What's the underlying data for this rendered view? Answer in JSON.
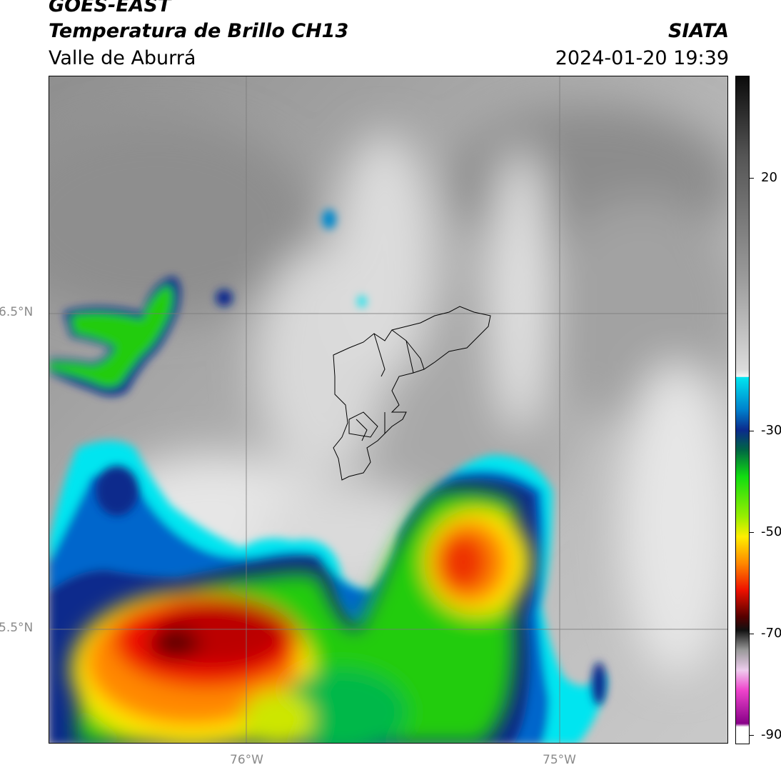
{
  "header": {
    "satellite": "GOES-EAST",
    "product": "Temperatura de Brillo CH13",
    "region": "Valle de Aburrá",
    "agency": "SIATA",
    "datetime": "2024-01-20 19:39"
  },
  "map": {
    "lat_labels": [
      "6.5°N",
      "5.5°N"
    ],
    "lon_labels": [
      "76°W",
      "75°W"
    ],
    "grid": true,
    "overlay": "Valle de Aburrá municipal boundaries"
  },
  "colorbar": {
    "ticks": [
      "20",
      "-30",
      "-50",
      "-70",
      "-90"
    ],
    "colors": {
      "warm": "#9b9b9b",
      "cyan": "#00e5f0",
      "blue": "#003399",
      "green": "#22cc11",
      "yellow": "#ffee00",
      "orange": "#ff8800",
      "red": "#ee1100",
      "darkred": "#550000",
      "magenta": "#cc44cc"
    }
  }
}
